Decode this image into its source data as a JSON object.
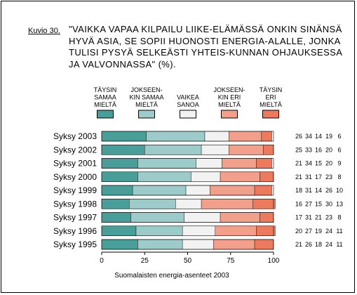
{
  "figure": {
    "label": "Kuvio 30.",
    "title": "\"VAIKKA VAPAA KILPAILU LIIKE-ELÄMÄSSÄ ONKIN SINÄNSÄ HYVÄ ASIA, SE SOPII HUONOSTI ENERGIA-ALALLE, JONKA TULISI PYSYÄ SELKEÄSTI YHTEIS-KUNNAN OHJAUKSESSA JA VALVONNASSA\" (%).",
    "source": "Suomalaisten energia-asenteet 2003"
  },
  "chart_data": {
    "type": "bar",
    "orientation": "horizontal",
    "stacked": true,
    "categories": [
      "Syksy 2003",
      "Syksy 2002",
      "Syksy 2001",
      "Syksy 2000",
      "Syksy 1999",
      "Syksy 1998",
      "Syksy 1997",
      "Syksy 1996",
      "Syksy 1995"
    ],
    "series": [
      {
        "name": "TÄYSIN SAMAA MIELTÄ",
        "name_lines": [
          "TÄYSIN",
          "SAMAA",
          "MIELTÄ"
        ],
        "color": "#4a9e9a",
        "values": [
          26,
          25,
          21,
          21,
          18,
          16,
          17,
          20,
          21
        ]
      },
      {
        "name": "JOKSEENKIN SAMAA MIELTÄ",
        "name_lines": [
          "JOKSEEN-",
          "KIN SAMAA",
          "MIELTÄ"
        ],
        "color": "#9ccbc9",
        "values": [
          34,
          33,
          34,
          31,
          31,
          27,
          31,
          27,
          26
        ]
      },
      {
        "name": "VAIKEA SANOA",
        "name_lines": [
          "VAIKEA",
          "SANOA"
        ],
        "color": "#f2f2f2",
        "values": [
          14,
          16,
          15,
          17,
          14,
          15,
          21,
          19,
          18
        ]
      },
      {
        "name": "JOKSEENKIN ERI MIELTÄ",
        "name_lines": [
          "JOKSEEN-",
          "KIN ERI",
          "MIELTÄ"
        ],
        "color": "#f2a08c",
        "values": [
          19,
          20,
          20,
          23,
          26,
          30,
          23,
          24,
          24
        ]
      },
      {
        "name": "TÄYSIN ERI MIELTÄ",
        "name_lines": [
          "TÄYSIN",
          "ERI",
          "MIELTÄ"
        ],
        "color": "#ee7a5e",
        "values": [
          6,
          6,
          9,
          8,
          10,
          13,
          8,
          11,
          11
        ]
      }
    ],
    "xlim": [
      0,
      100
    ],
    "xticks": [
      0,
      25,
      50,
      75,
      100
    ],
    "xlabel": "Suomalaisten energia-asenteet 2003",
    "grid": false,
    "legend_position": "top"
  }
}
